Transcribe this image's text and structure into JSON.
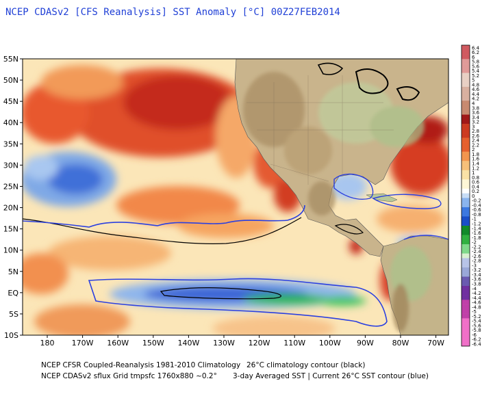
{
  "title": "NCEP CDASv2 [CFS Reanalysis] SST Anomaly [°C] 00Z27FEB2014",
  "map": {
    "lat_labels": [
      "55N",
      "50N",
      "45N",
      "40N",
      "35N",
      "30N",
      "25N",
      "20N",
      "15N",
      "10N",
      "5N",
      "EQ",
      "5S",
      "10S"
    ],
    "lon_labels": [
      "180",
      "170W",
      "160W",
      "150W",
      "140W",
      "130W",
      "120W",
      "110W",
      "100W",
      "90W",
      "80W",
      "70W"
    ]
  },
  "colorbar": {
    "labels": [
      "6.4",
      "6.2",
      "6",
      "5.8",
      "5.6",
      "5.4",
      "5.2",
      "5",
      "4.8",
      "4.6",
      "4.4",
      "4.2",
      "4",
      "3.8",
      "3.6",
      "3.4",
      "3.2",
      "3",
      "2.8",
      "2.6",
      "2.4",
      "2.2",
      "2",
      "1.8",
      "1.6",
      "1.4",
      "1.2",
      "1",
      "0.8",
      "0.6",
      "0.4",
      "0.2",
      "0",
      "-0.2",
      "-0.4",
      "-0.6",
      "-0.8",
      "-1",
      "-1.2",
      "-1.4",
      "-1.6",
      "-1.8",
      "-2",
      "-2.2",
      "-2.4",
      "-2.6",
      "-2.8",
      "-3",
      "-3.2",
      "-3.4",
      "-3.6",
      "-3.8",
      "-4",
      "-4.2",
      "-4.4",
      "-4.6",
      "-4.8",
      "-5",
      "-5.2",
      "-5.4",
      "-5.6",
      "-5.8",
      "-6",
      "-6.2",
      "-6.4"
    ]
  },
  "footer": {
    "line1_left": "NCEP CFSR Coupled-Reanalysis 1981-2010 Climatology",
    "line1_right": "26°C climatology contour (black)",
    "line2_left": "NCEP CDASv2 sflux Grid tmpsfc 1760x880 ~0.2°",
    "line2_right": "3-day Averaged SST | Current 26°C SST contour (blue)"
  },
  "colors": {
    "title": "#1f3fd6",
    "contour_climatology": "#000000",
    "contour_current": "#2a3fe0",
    "land": "#c9b48c"
  }
}
